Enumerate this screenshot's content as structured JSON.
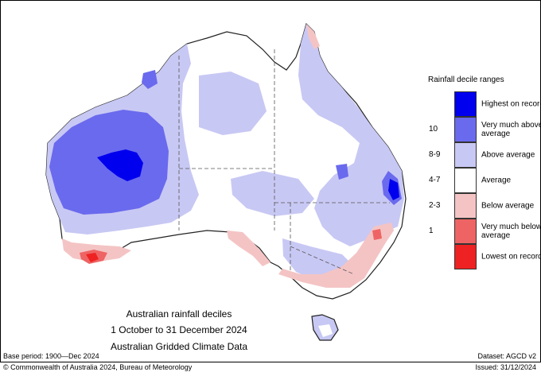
{
  "map": {
    "title_lines": [
      "Australian rainfall deciles",
      "1 October to 31 December 2024",
      "Australian Gridded Climate Data"
    ],
    "legend": {
      "title": "Rainfall decile ranges",
      "items": [
        {
          "label": "Highest on record",
          "color": "#0000ee",
          "range": ""
        },
        {
          "label": "Very much above average",
          "color": "#6a6aee",
          "range": "10"
        },
        {
          "label": "Above average",
          "color": "#c8c8f4",
          "range": "8-9"
        },
        {
          "label": "Average",
          "color": "#ffffff",
          "range": "4-7"
        },
        {
          "label": "Below average",
          "color": "#f4c4c4",
          "range": "2-3"
        },
        {
          "label": "Very much below average",
          "color": "#ee6464",
          "range": "1"
        },
        {
          "label": "Lowest on record",
          "color": "#ee2222",
          "range": ""
        }
      ]
    },
    "footer": {
      "base_period": "Base period: 1900—Dec 2024",
      "dataset": "Dataset: AGCD v2",
      "copyright": "© Commonwealth of Australia 2024, Bureau of Meteorology",
      "issued": "Issued: 31/12/2024"
    }
  }
}
